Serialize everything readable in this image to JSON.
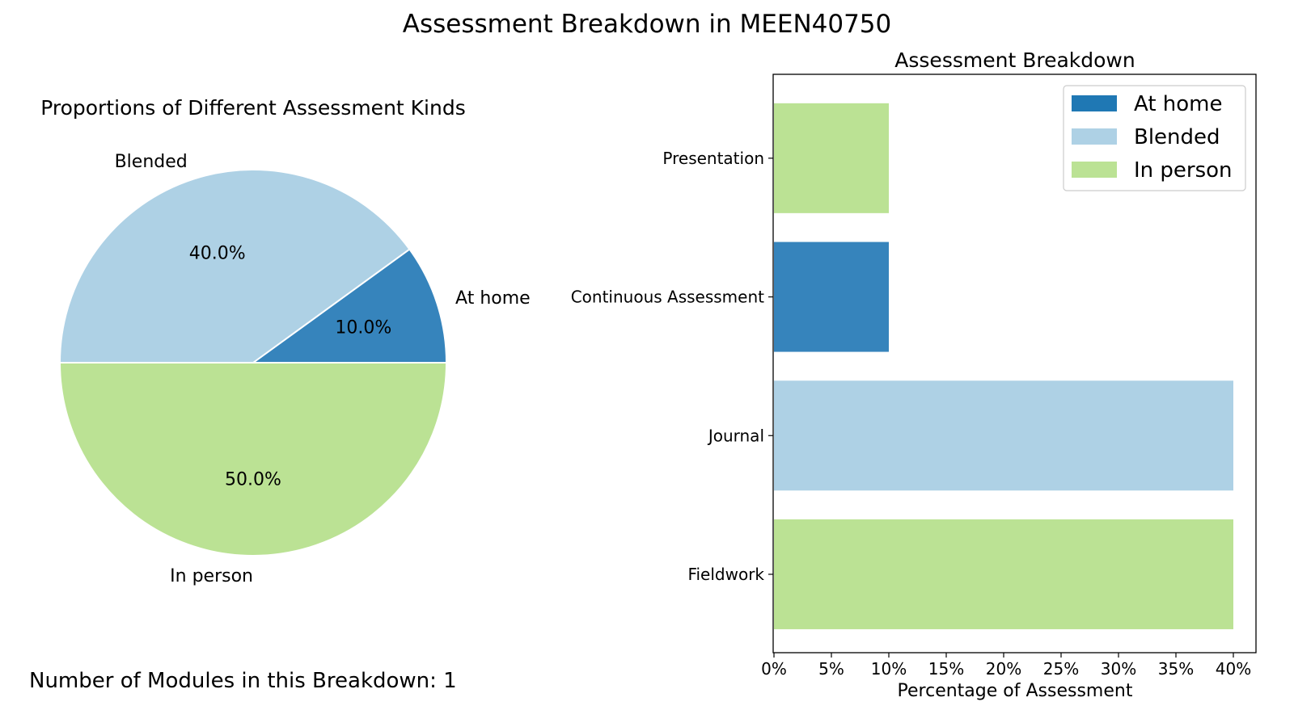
{
  "figure": {
    "title": "Assessment Breakdown in MEEN40750",
    "footer": "Number of Modules in this Breakdown: 1"
  },
  "colors": {
    "at_home": "#3684bc",
    "blended": "#aed1e5",
    "in_person": "#bbe294",
    "legend_at_home": "#1f78b4"
  },
  "chart_data": [
    {
      "type": "pie",
      "title": "Proportions of Different Assessment Kinds",
      "labels": [
        "At home",
        "Blended",
        "In person"
      ],
      "values": [
        10.0,
        40.0,
        50.0
      ],
      "pct_labels": [
        "10.0%",
        "40.0%",
        "50.0%"
      ],
      "start_angle_deg": 0,
      "direction": "counterclockwise"
    },
    {
      "type": "bar",
      "orientation": "horizontal",
      "title": "Assessment Breakdown",
      "xlabel": "Percentage of Assessment",
      "categories": [
        "Presentation",
        "Continuous Assessment",
        "Journal",
        "Fieldwork"
      ],
      "values": [
        10,
        10,
        40,
        40
      ],
      "bar_kinds": [
        "In person",
        "At home",
        "Blended",
        "In person"
      ],
      "xlim": [
        0,
        40
      ],
      "xticks": [
        "0%",
        "5%",
        "10%",
        "15%",
        "20%",
        "25%",
        "30%",
        "35%",
        "40%"
      ],
      "legend": [
        "At home",
        "Blended",
        "In person"
      ],
      "legend_position": "top-right",
      "grid": false
    }
  ]
}
